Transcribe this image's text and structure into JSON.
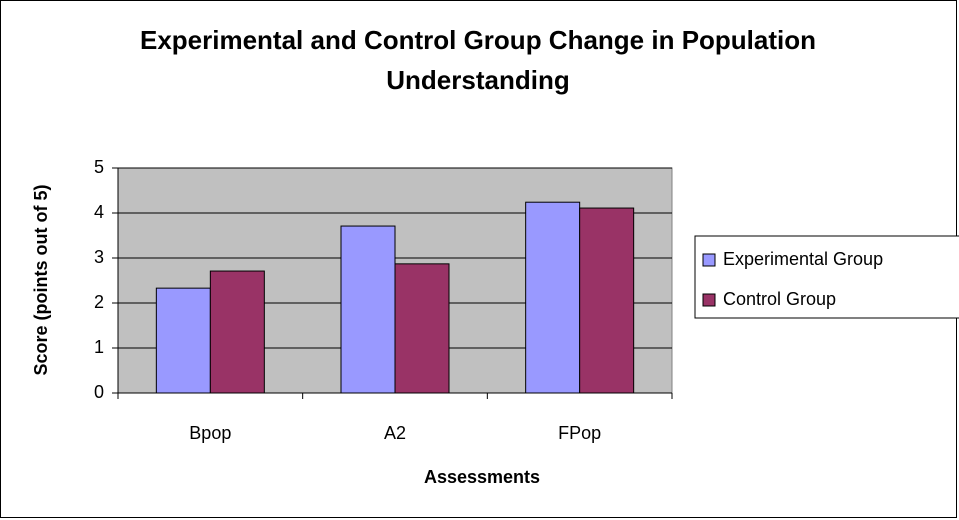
{
  "chart_data": {
    "type": "bar",
    "title": "Experimental and Control Group Change in Population Understanding",
    "x_label": "Assessments",
    "y_label": "Score (points out of 5)",
    "categories": [
      "Bpop",
      "A2",
      "FPop"
    ],
    "series": [
      {
        "name": "Experimental Group",
        "color": "#9999ff",
        "values": [
          2.33,
          3.71,
          4.24
        ]
      },
      {
        "name": "Control Group",
        "color": "#993366",
        "values": [
          2.71,
          2.87,
          4.11
        ]
      }
    ],
    "ylim": [
      0,
      5
    ],
    "yticks": [
      0,
      1,
      2,
      3,
      4,
      5
    ],
    "grid": true,
    "legend": "right",
    "plot_background": "#c0c0c0"
  }
}
